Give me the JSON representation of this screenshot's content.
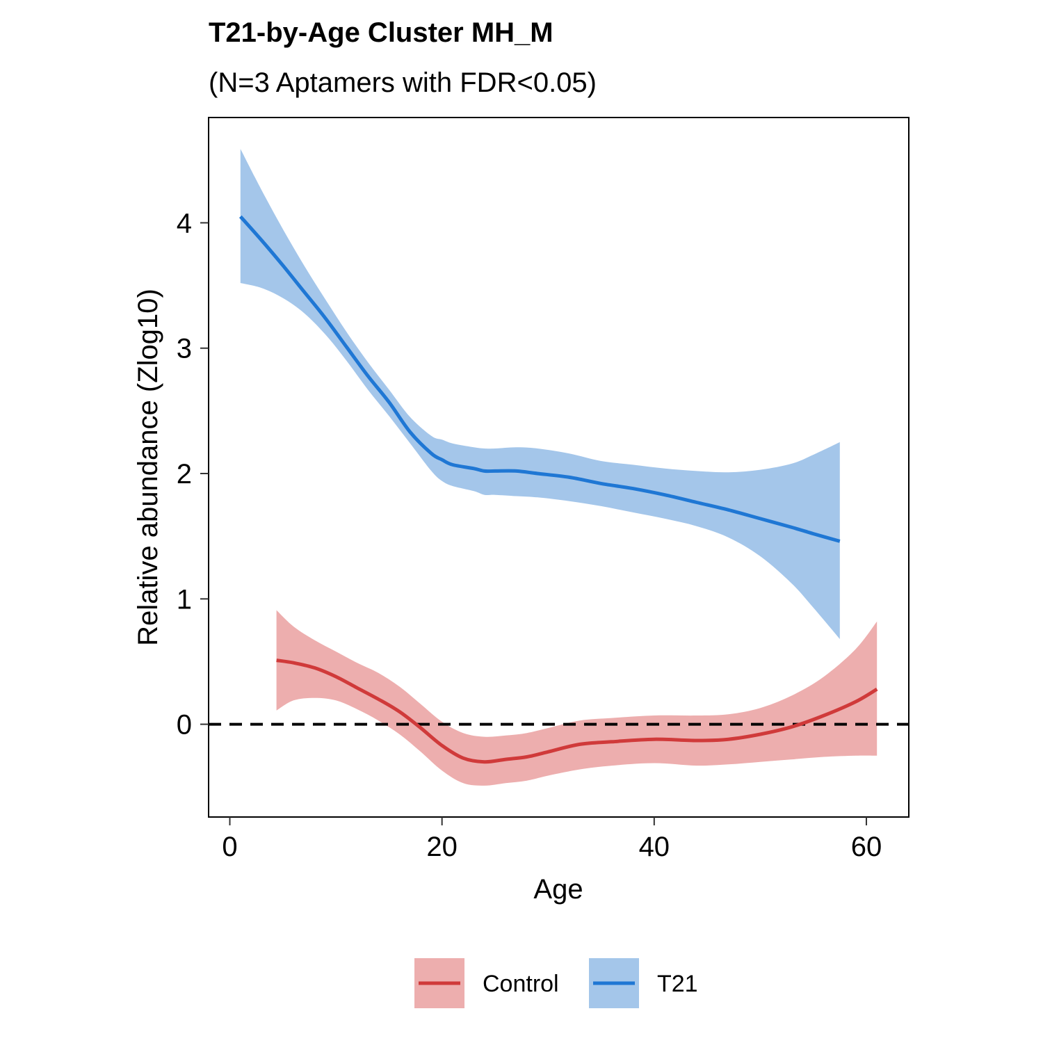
{
  "chart_data": {
    "type": "line",
    "title": "T21-by-Age Cluster MH_M",
    "subtitle": "(N=3 Aptamers with FDR<0.05)",
    "xlabel": "Age",
    "ylabel": "Relative abundance (Zlog10)",
    "xlim": [
      -2,
      64
    ],
    "ylim": [
      -0.74,
      4.84
    ],
    "xticks": [
      0,
      20,
      40,
      60
    ],
    "yticks": [
      0,
      1,
      2,
      3,
      4
    ],
    "reference_line": {
      "y": 0,
      "style": "dashed",
      "color": "#000000"
    },
    "legend": {
      "placement": "bottom"
    },
    "series": [
      {
        "name": "Control",
        "color": "#D03A3A",
        "fill": "#EDAEAE",
        "x": [
          4.4,
          6,
          8,
          10,
          12,
          14,
          16,
          18,
          20,
          22,
          24,
          26,
          28,
          30,
          33,
          36,
          40,
          44,
          47,
          50,
          53,
          56,
          59,
          61
        ],
        "y": [
          0.51,
          0.49,
          0.45,
          0.38,
          0.29,
          0.2,
          0.1,
          -0.03,
          -0.17,
          -0.27,
          -0.3,
          -0.28,
          -0.26,
          -0.22,
          -0.16,
          -0.14,
          -0.12,
          -0.13,
          -0.12,
          -0.08,
          -0.02,
          0.07,
          0.18,
          0.28
        ],
        "lower": [
          0.11,
          0.19,
          0.21,
          0.19,
          0.12,
          0.03,
          -0.08,
          -0.22,
          -0.37,
          -0.47,
          -0.49,
          -0.47,
          -0.45,
          -0.41,
          -0.36,
          -0.33,
          -0.31,
          -0.33,
          -0.32,
          -0.3,
          -0.28,
          -0.26,
          -0.25,
          -0.25
        ],
        "upper": [
          0.91,
          0.78,
          0.67,
          0.58,
          0.49,
          0.41,
          0.3,
          0.16,
          0.02,
          -0.07,
          -0.1,
          -0.09,
          -0.07,
          -0.03,
          0.03,
          0.05,
          0.07,
          0.07,
          0.08,
          0.13,
          0.23,
          0.38,
          0.6,
          0.82
        ]
      },
      {
        "name": "T21",
        "color": "#1F77D4",
        "fill": "#A4C6EA",
        "x": [
          1,
          3,
          5,
          7,
          9,
          11,
          13,
          15,
          17,
          19,
          20,
          21,
          23,
          24,
          25,
          27,
          29,
          32,
          35,
          38,
          41,
          44,
          47,
          50,
          53,
          55,
          57.5
        ],
        "y": [
          4.05,
          3.86,
          3.66,
          3.45,
          3.24,
          3.01,
          2.78,
          2.57,
          2.33,
          2.16,
          2.11,
          2.07,
          2.04,
          2.02,
          2.02,
          2.02,
          2.0,
          1.97,
          1.92,
          1.88,
          1.83,
          1.77,
          1.71,
          1.64,
          1.57,
          1.52,
          1.46
        ],
        "lower": [
          3.52,
          3.48,
          3.4,
          3.28,
          3.11,
          2.9,
          2.67,
          2.46,
          2.24,
          2.02,
          1.94,
          1.9,
          1.86,
          1.83,
          1.83,
          1.82,
          1.81,
          1.78,
          1.74,
          1.69,
          1.64,
          1.58,
          1.49,
          1.34,
          1.12,
          0.93,
          0.68
        ],
        "upper": [
          4.59,
          4.26,
          3.95,
          3.66,
          3.39,
          3.13,
          2.89,
          2.67,
          2.45,
          2.3,
          2.27,
          2.24,
          2.21,
          2.2,
          2.2,
          2.21,
          2.2,
          2.16,
          2.1,
          2.07,
          2.04,
          2.02,
          2.01,
          2.03,
          2.08,
          2.15,
          2.25
        ]
      }
    ]
  }
}
